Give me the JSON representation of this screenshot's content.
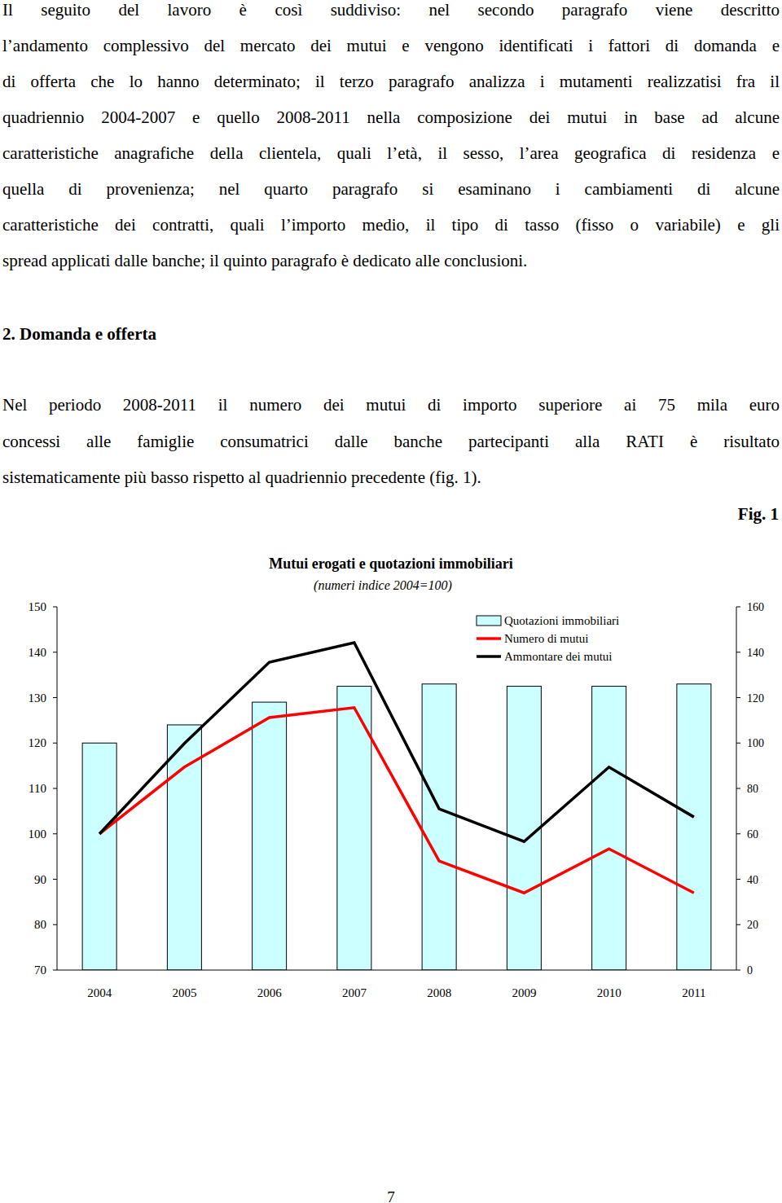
{
  "intro": {
    "lines": [
      "Il seguito del lavoro è così suddiviso: nel secondo paragrafo viene descritto",
      "l’andamento complessivo del mercato dei mutui e vengono identificati i fattori di domanda e",
      "di offerta che lo hanno determinato; il terzo paragrafo analizza i mutamenti realizzatisi fra il",
      "quadriennio 2004-2007 e quello 2008-2011 nella composizione dei mutui in base ad alcune",
      "caratteristiche anagrafiche della clientela, quali l’età, il sesso, l’area geografica di residenza e",
      "quella di provenienza; nel quarto paragrafo si esaminano i cambiamenti di alcune",
      "caratteristiche dei contratti, quali l’importo medio, il tipo di tasso (fisso o variabile) e gli",
      "spread applicati dalle banche; il quinto paragrafo è dedicato alle conclusioni."
    ]
  },
  "section": {
    "heading": "2. Domanda e offerta",
    "lines": [
      "Nel periodo 2008-2011 il numero dei mutui di importo superiore ai 75 mila euro",
      "concessi alle famiglie consumatrici dalle banche partecipanti alla RATI è risultato",
      "sistematicamente più basso rispetto al quadriennio precedente (fig. 1)."
    ]
  },
  "figure_label": "Fig. 1",
  "chart_data": {
    "type": "bar",
    "title": "Mutui erogati e quotazioni immobiliari",
    "subtitle": "(numeri indice 2004=100)",
    "categories": [
      "2004",
      "2005",
      "2006",
      "2007",
      "2008",
      "2009",
      "2010",
      "2011"
    ],
    "series": [
      {
        "name": "Quotazioni immobiliari",
        "type": "bar",
        "color": "#ccffff",
        "axis": "y2",
        "values": [
          100,
          108,
          118,
          125,
          126,
          125,
          125,
          126
        ]
      },
      {
        "name": "Numero di mutui",
        "type": "line",
        "color": "#ff0000",
        "values": [
          100,
          114.7,
          125.6,
          127.8,
          94,
          87,
          96.7,
          87
        ]
      },
      {
        "name": "Ammontare dei mutui",
        "type": "line",
        "color": "#000000",
        "values": [
          100,
          119.9,
          137.8,
          142.1,
          105.5,
          98.3,
          114.7,
          103.7
        ]
      }
    ],
    "ylim": [
      70,
      150
    ],
    "yticks": [
      70,
      80,
      90,
      100,
      110,
      120,
      130,
      140,
      150
    ],
    "y2lim": [
      0,
      160
    ],
    "y2ticks": [
      0,
      20,
      40,
      60,
      80,
      100,
      120,
      140,
      160
    ],
    "legend": "top-right",
    "grid": false
  },
  "page_number": 7
}
